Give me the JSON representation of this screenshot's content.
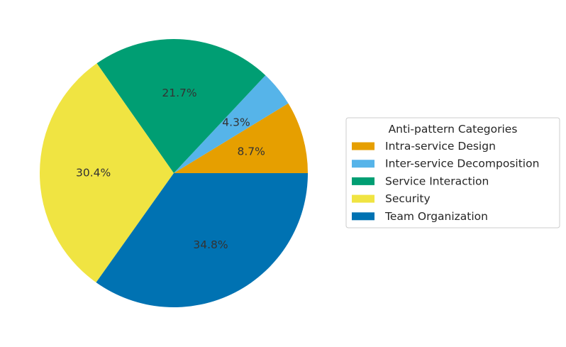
{
  "chart_data": {
    "type": "pie",
    "title": "",
    "legend_title": "Anti-pattern Categories",
    "legend_position": "right",
    "start_angle_deg": 0,
    "direction": "counterclockwise",
    "slices": [
      {
        "label": "Intra-service Design",
        "value": 8.7,
        "pct_label": "8.7%",
        "color": "#E69F00"
      },
      {
        "label": "Inter-service Decomposition",
        "value": 4.3,
        "pct_label": "4.3%",
        "color": "#56B4E9"
      },
      {
        "label": "Service Interaction",
        "value": 21.7,
        "pct_label": "21.7%",
        "color": "#009E73"
      },
      {
        "label": "Security",
        "value": 30.4,
        "pct_label": "30.4%",
        "color": "#F0E442"
      },
      {
        "label": "Team Organization",
        "value": 34.8,
        "pct_label": "34.8%",
        "color": "#0072B2"
      }
    ]
  }
}
